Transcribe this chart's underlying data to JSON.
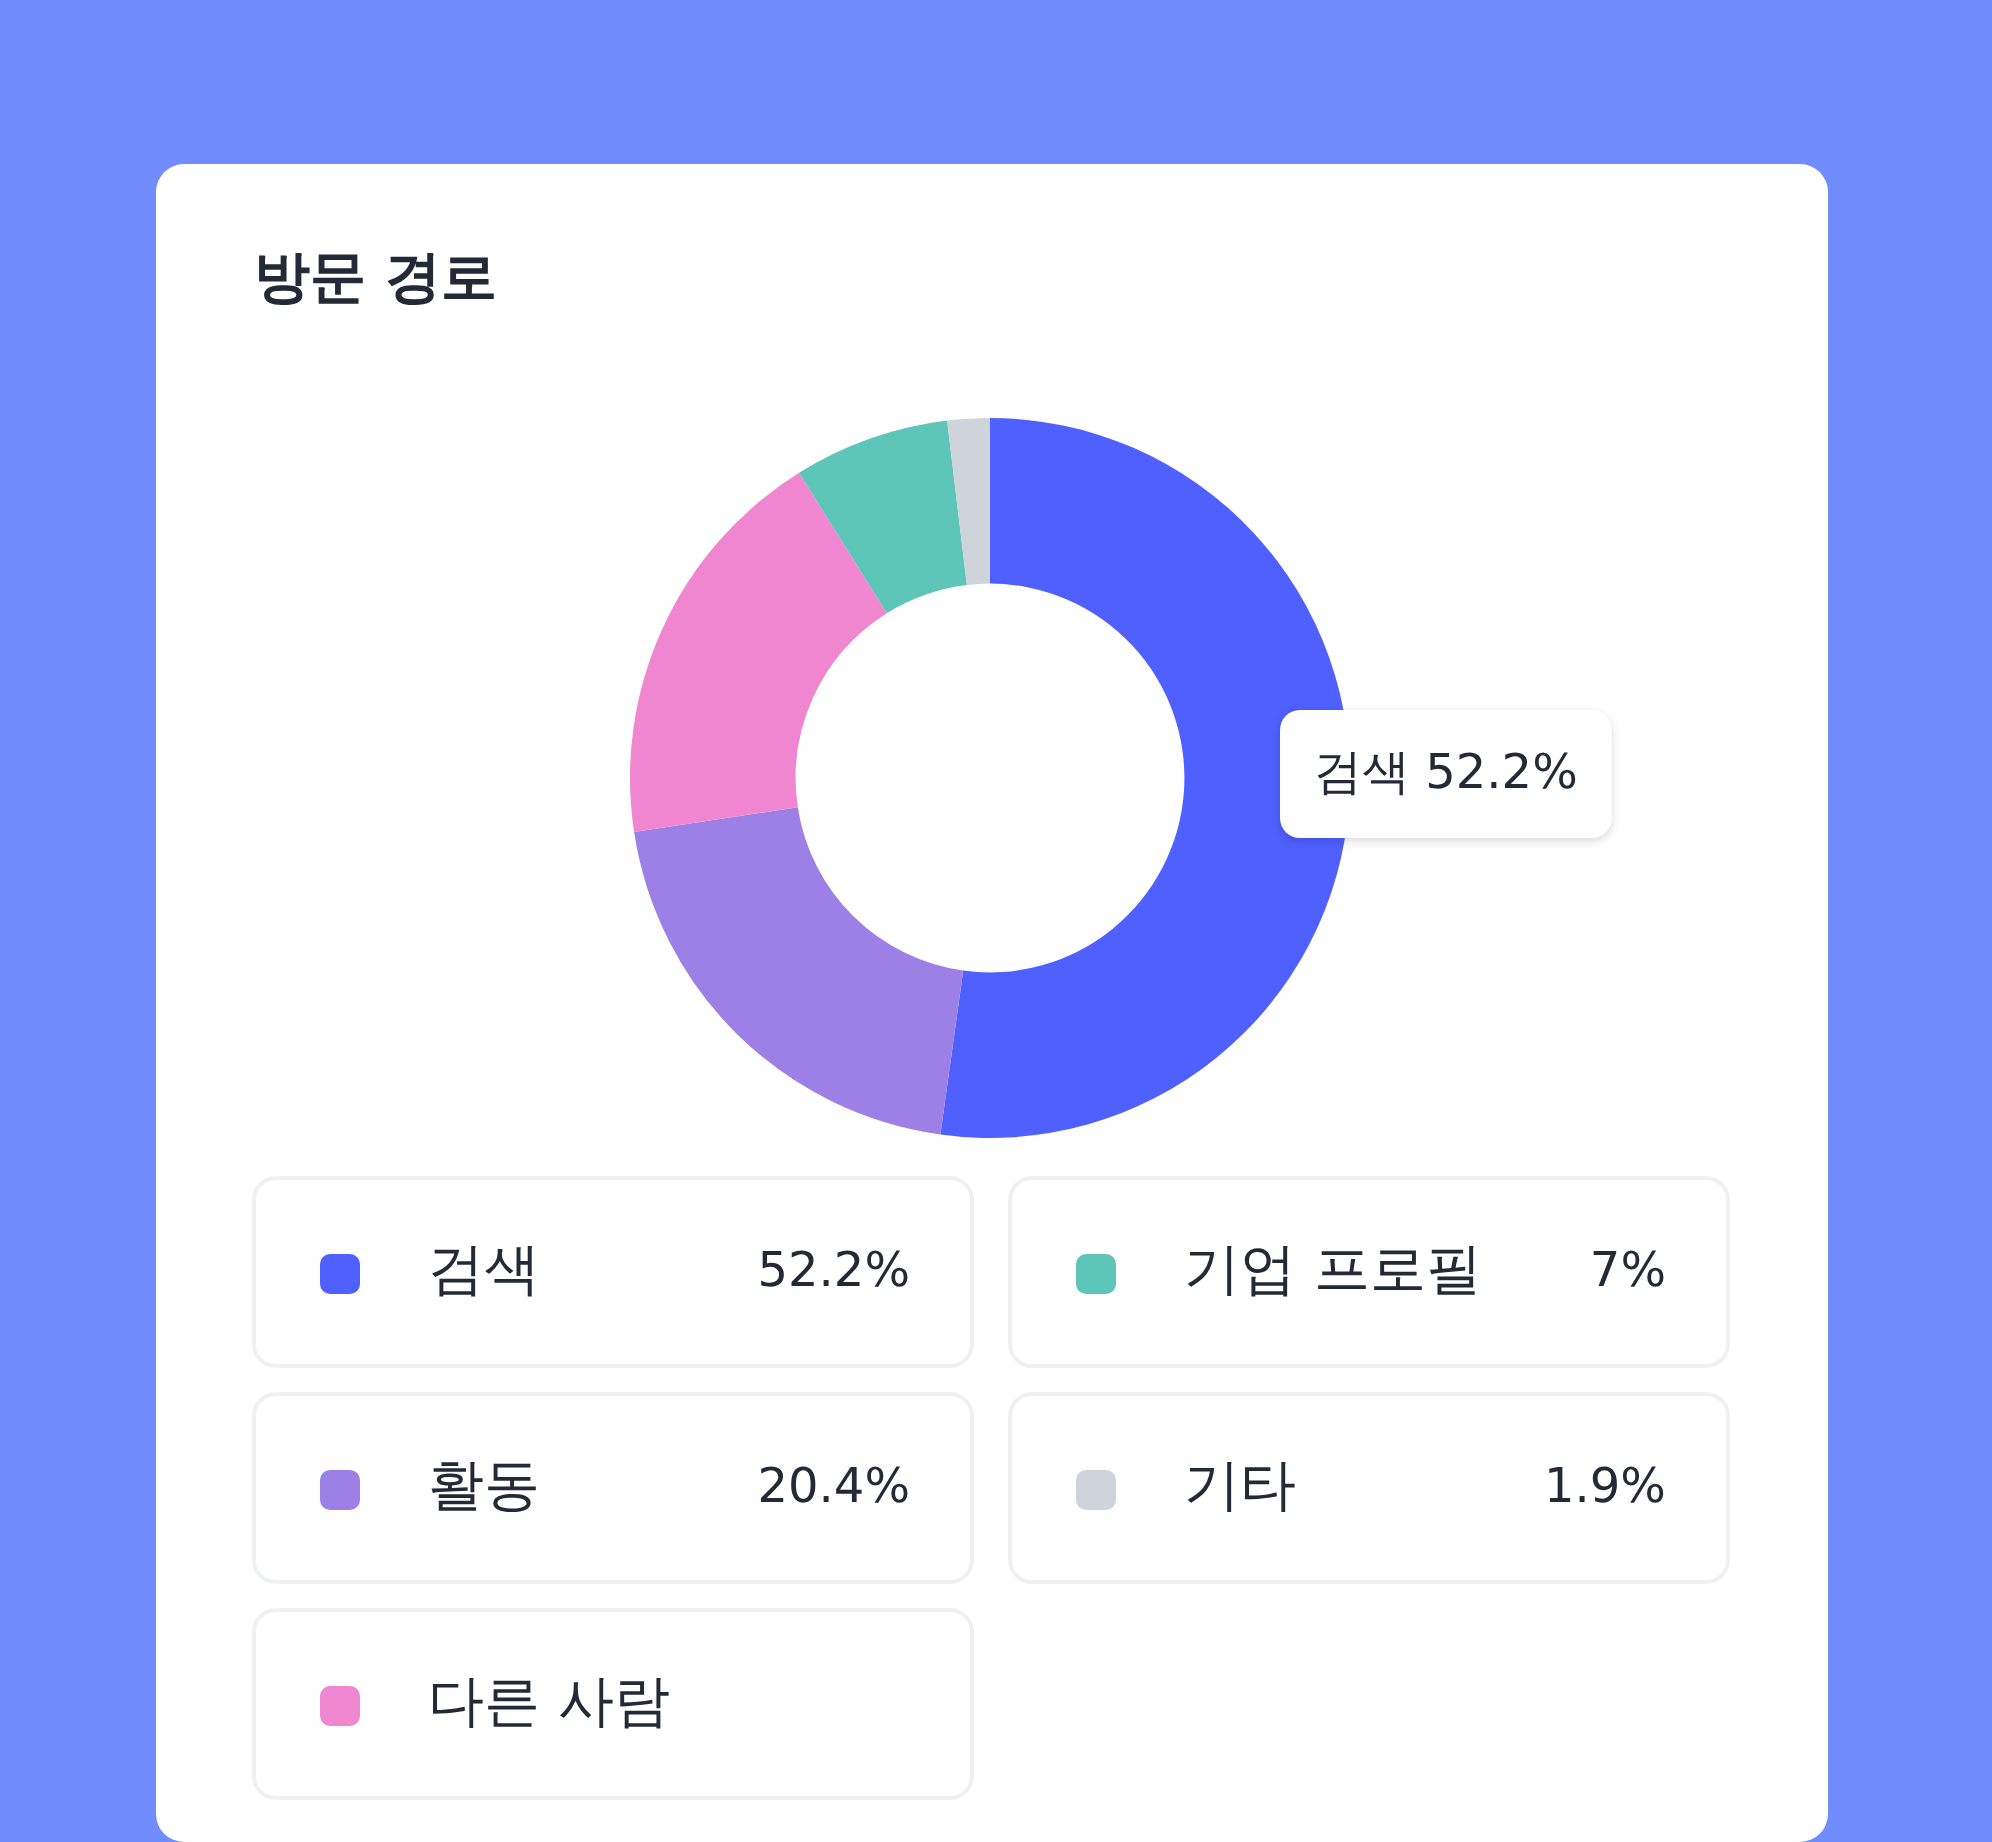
{
  "chart_data": {
    "type": "donut",
    "title": "방문 경로",
    "categories": [
      "검색",
      "활동",
      "다른 사람",
      "기업 프로필",
      "기타"
    ],
    "values": [
      52.2,
      20.4,
      18.5,
      7,
      1.9
    ],
    "colors": [
      "#4f60ff",
      "#9d80e6",
      "#f085d0",
      "#5ec5b9",
      "#cfd3da"
    ],
    "value_labels": [
      "52.2%",
      "20.4%",
      null,
      "7%",
      "1.9%"
    ],
    "annotations": [
      "검색 52.2%"
    ],
    "legend": "bottom"
  }
}
